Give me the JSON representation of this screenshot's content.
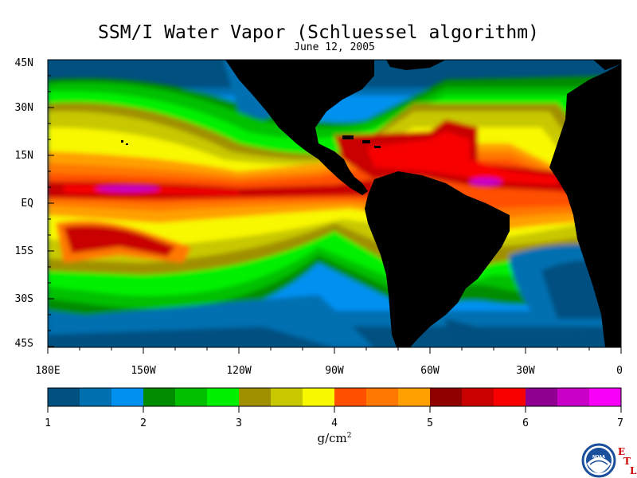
{
  "title": "SSM/I Water Vapor (Schluessel algorithm)",
  "date": "June 12, 2005",
  "lat_labels": [
    "45N",
    "30N",
    "15N",
    "EQ",
    "15S",
    "30S",
    "45S"
  ],
  "lon_labels": [
    "180E",
    "150W",
    "120W",
    "90W",
    "60W",
    "30W",
    "0"
  ],
  "colorbar": {
    "colors": [
      "#005080",
      "#0070b0",
      "#0090f0",
      "#008c00",
      "#00c000",
      "#00f000",
      "#a09000",
      "#c8c800",
      "#f8f800",
      "#ff5000",
      "#ff7800",
      "#ffa000",
      "#900000",
      "#c80000",
      "#f80000",
      "#900090",
      "#c800c8",
      "#f800f8"
    ],
    "tick_labels": [
      "1",
      "2",
      "3",
      "4",
      "5",
      "6",
      "7"
    ],
    "unit_label": "g/cm",
    "unit_sup": "2"
  },
  "logo": {
    "name": "NOAA",
    "letters": [
      "E",
      "T",
      "L"
    ]
  },
  "land_color": "#000000"
}
